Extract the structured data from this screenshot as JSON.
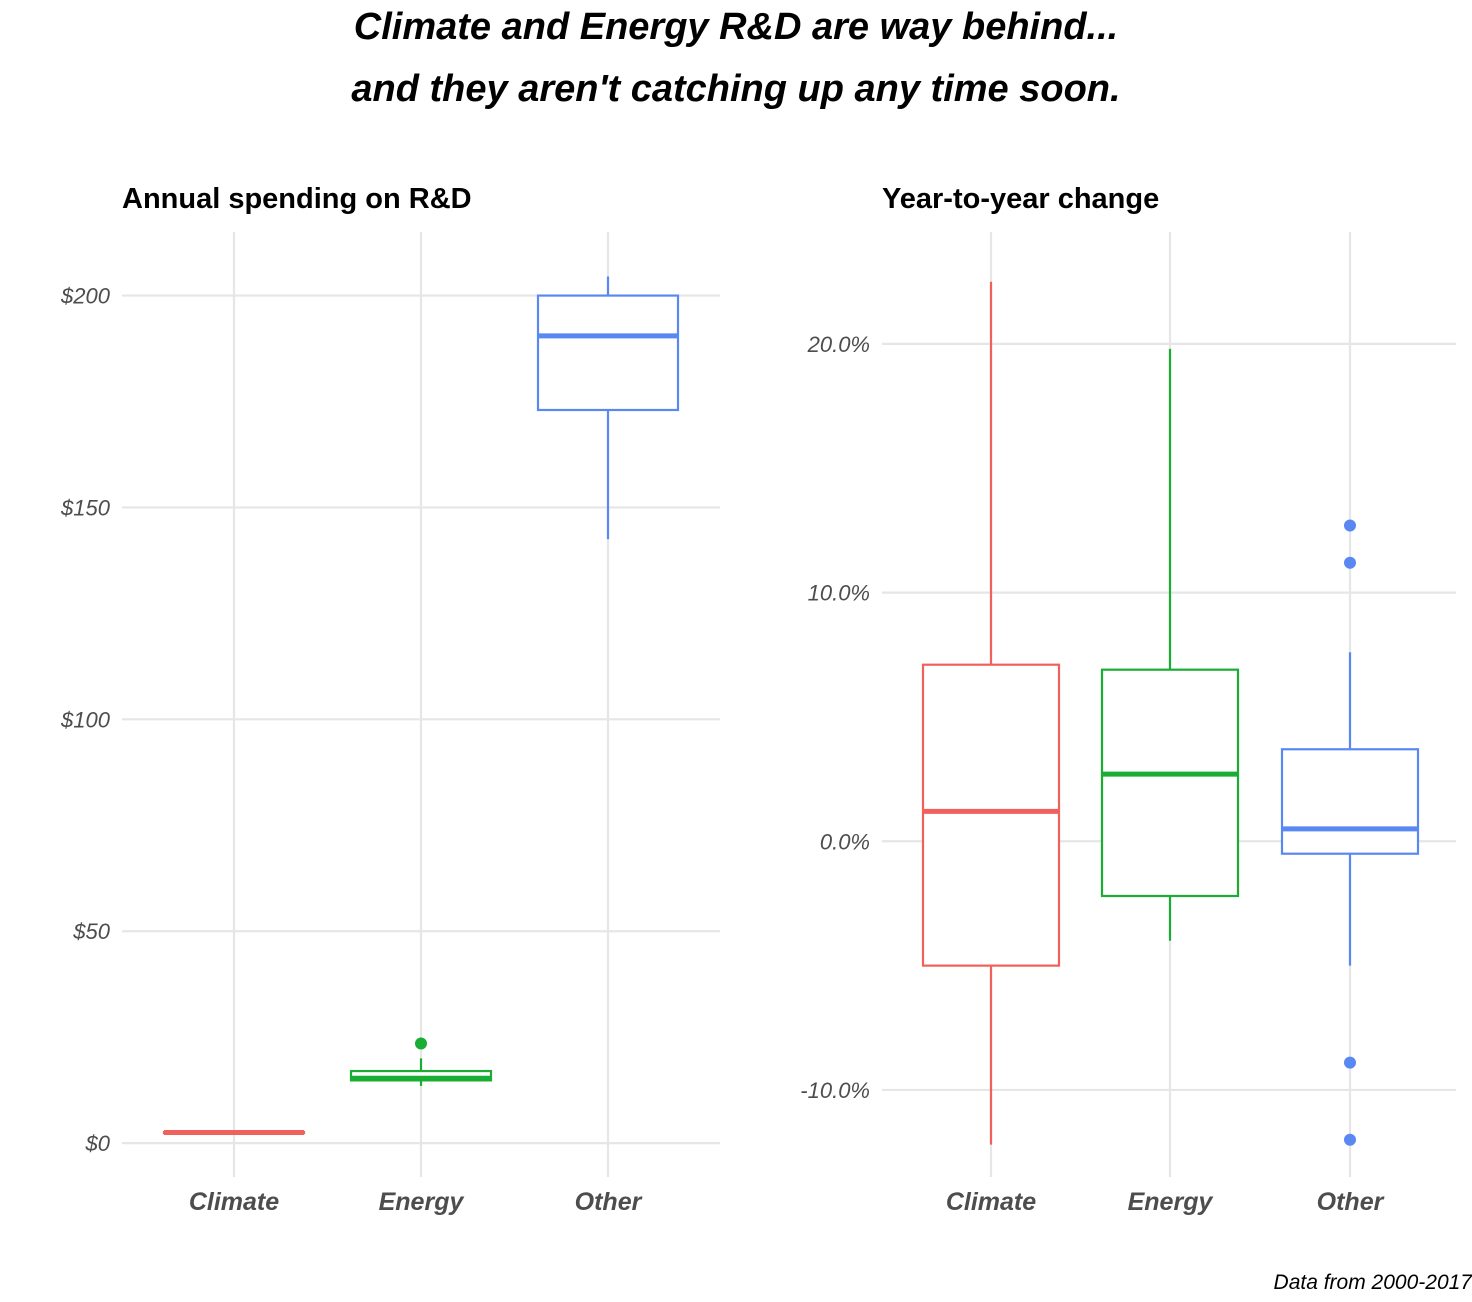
{
  "title_line1": "Climate and Energy R&D are way behind...",
  "title_line2": "and they aren't catching up any time soon.",
  "caption": "Data from 2000-2017",
  "colors": {
    "Climate": "#f0605c",
    "Energy": "#1aad33",
    "Other": "#5a88f2",
    "grid": "#e6e6e6"
  },
  "chart_data": [
    {
      "type": "boxplot",
      "title": "Annual spending on R&D",
      "xlabel": "",
      "ylabel": "",
      "categories": [
        "Climate",
        "Energy",
        "Other"
      ],
      "y_ticks": [
        0,
        50,
        100,
        150,
        200
      ],
      "y_tick_labels": [
        "$0",
        "$50",
        "$100",
        "$150",
        "$200"
      ],
      "ylim": [
        -8,
        215
      ],
      "grid": true,
      "legend": "none",
      "boxes": [
        {
          "category": "Climate",
          "min": 2.4,
          "q1": 2.4,
          "median": 2.5,
          "q3": 2.6,
          "max": 2.7,
          "outliers": []
        },
        {
          "category": "Energy",
          "min": 13.5,
          "q1": 14.8,
          "median": 15.3,
          "q3": 17.0,
          "max": 20.0,
          "outliers": [
            23.5
          ]
        },
        {
          "category": "Other",
          "min": 142.5,
          "q1": 173.0,
          "median": 190.5,
          "q3": 200.0,
          "max": 204.5,
          "outliers": []
        }
      ]
    },
    {
      "type": "boxplot",
      "title": "Year-to-year change",
      "xlabel": "",
      "ylabel": "",
      "categories": [
        "Climate",
        "Energy",
        "Other"
      ],
      "y_ticks": [
        -10,
        0,
        10,
        20
      ],
      "y_tick_labels": [
        "-10.0%",
        "0.0%",
        "10.0%",
        "20.0%"
      ],
      "ylim": [
        -13.5,
        24.5
      ],
      "grid": true,
      "legend": "none",
      "boxes": [
        {
          "category": "Climate",
          "min": -12.2,
          "q1": -5.0,
          "median": 1.2,
          "q3": 7.1,
          "max": 22.5,
          "outliers": []
        },
        {
          "category": "Energy",
          "min": -4.0,
          "q1": -2.2,
          "median": 2.7,
          "q3": 6.9,
          "max": 19.8,
          "outliers": []
        },
        {
          "category": "Other",
          "min": -5.0,
          "q1": -0.5,
          "median": 0.5,
          "q3": 3.7,
          "max": 7.6,
          "outliers": [
            12.7,
            11.2,
            -8.9,
            -12.0
          ]
        }
      ]
    }
  ]
}
